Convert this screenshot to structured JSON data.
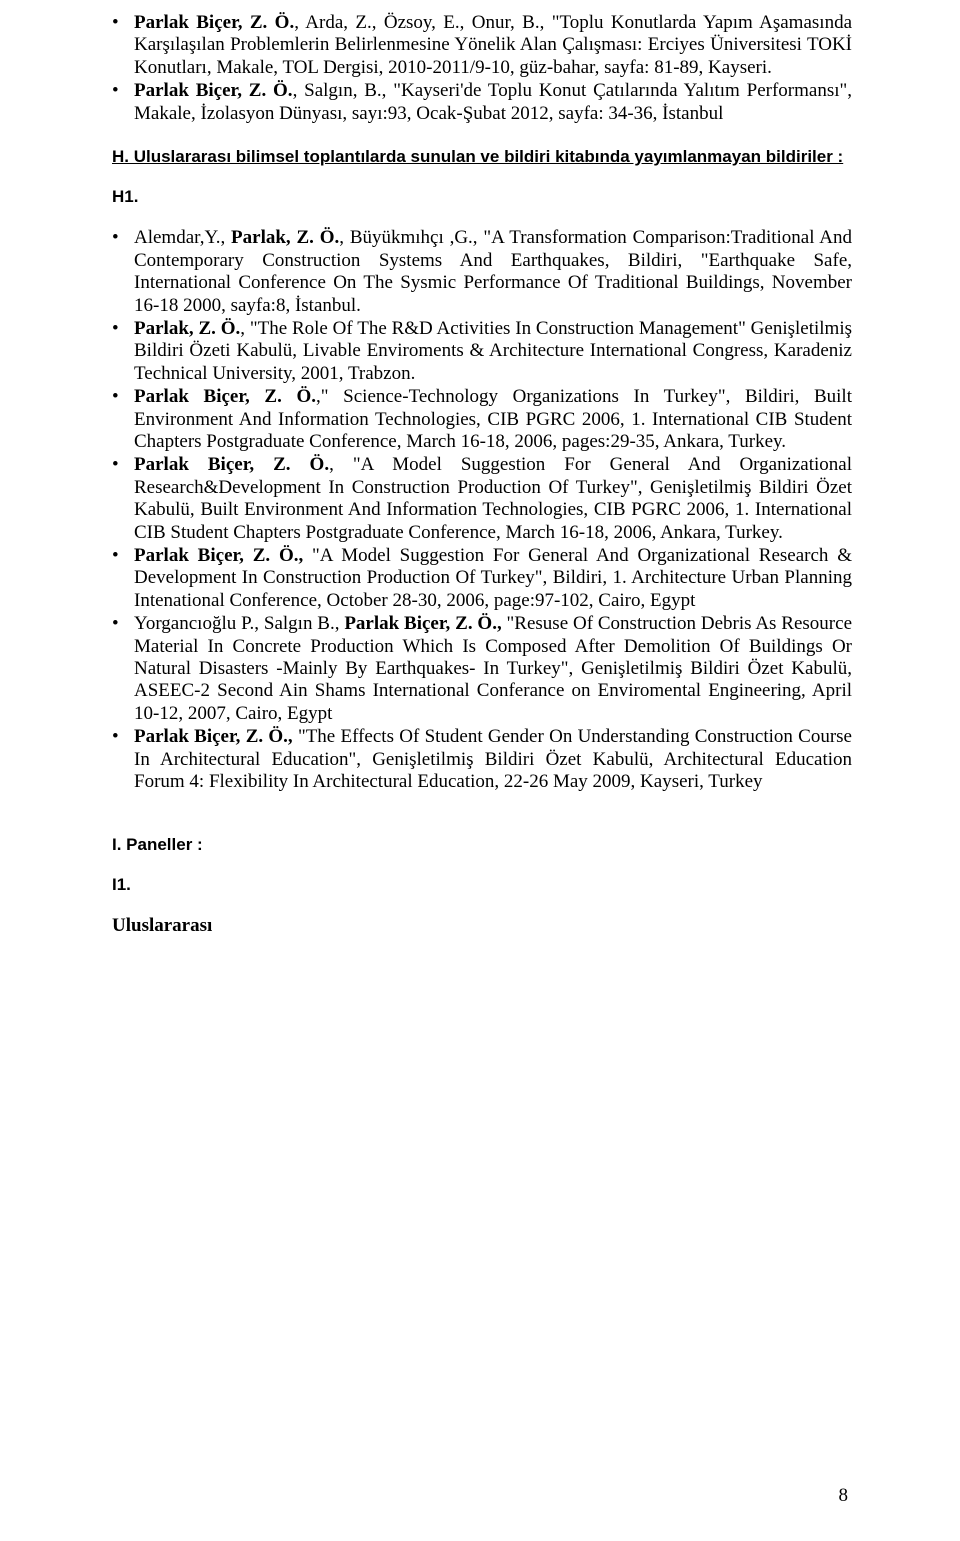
{
  "bullet_char": "•",
  "entries_top": [
    {
      "lead_bold": "Parlak Biçer, Z. Ö.",
      "rest": ", Arda, Z., Özsoy, E., Onur, B., \"Toplu Konutlarda Yapım Aşamasında Karşılaşılan Problemlerin Belirlenmesine Yönelik Alan Çalışması: Erciyes Üniversitesi TOKİ Konutları, Makale, TOL Dergisi, 2010-2011/9-10, güz-bahar, sayfa: 81-89, Kayseri."
    },
    {
      "lead_bold": "Parlak Biçer, Z. Ö.",
      "rest": ", Salgın, B., \"Kayseri'de Toplu Konut Çatılarında Yalıtım Performansı\", Makale, İzolasyon Dünyası, sayı:93, Ocak-Şubat 2012, sayfa: 34-36, İstanbul"
    }
  ],
  "section_h": "H.  Uluslararası  bilimsel  toplantılarda  sunulan  ve  bildiri  kitabında yayımlanmayan bildiriler :",
  "h1_label": "H1.",
  "entries_h1": [
    {
      "pre": "Alemdar,Y.,  ",
      "bold1": "Parlak,  Z.  Ö.",
      "rest": ",  Büyükmıhçı  ,G.,  \"A  Transformation Comparison:Traditional And Contemporary Construction Systems And Earthquakes, Bildiri, \"Earthquake Safe, International Conference On The Sysmic Performance Of Traditional Buildings, November 16-18 2000, sayfa:8, İstanbul."
    },
    {
      "pre": "",
      "bold1": "Parlak, Z. Ö.",
      "rest": ", \"The Role Of The R&D Activities In Construction Management\" Genişletilmiş Bildiri Özeti Kabulü, Livable Enviroments & Architecture International Congress, Karadeniz Technical University, 2001, Trabzon."
    },
    {
      "pre": "",
      "bold1": "Parlak Biçer, Z. Ö.",
      "rest": ",\" Science-Technology Organizations In Turkey\", Bildiri, Built Environment And Information Technologies, CIB PGRC 2006, 1. International CIB Student Chapters Postgraduate Conference, March 16-18, 2006, pages:29-35, Ankara, Turkey."
    },
    {
      "pre": "",
      "bold1": "Parlak Biçer, Z. Ö.",
      "rest": ", \"A Model Suggestion For General And Organizational Research&Development In Construction Production Of Turkey\", Genişletilmiş Bildiri Özet Kabulü, Built Environment And Information Technologies, CIB PGRC 2006, 1. International CIB Student Chapters Postgraduate Conference, March 16-18, 2006, Ankara, Turkey."
    },
    {
      "pre": "",
      "bold1": "Parlak Biçer, Z. Ö.,",
      "rest": " \"A Model Suggestion For General And Organizational Research & Development In Construction Production Of Turkey\", Bildiri, 1. Architecture Urban Planning Intenational Conference, October 28-30, 2006, page:97-102, Cairo, Egypt"
    },
    {
      "pre": "Yorgancıoğlu P., Salgın B., ",
      "bold1": "Parlak Biçer, Z. Ö.,",
      "rest": " \"Resuse Of Construction Debris As Resource Material In Concrete Production Which Is Composed After Demolition Of Buildings Or Natural Disasters -Mainly By Earthquakes- In Turkey\", Genişletilmiş Bildiri Özet Kabulü, ASEEC-2 Second Ain Shams International Conferance on Enviromental Engineering, April 10-12, 2007, Cairo, Egypt"
    },
    {
      "pre": "",
      "bold1": "Parlak Biçer, Z. Ö.,",
      "rest": " \"The Effects Of Student Gender On Understanding Construction Course In Architectural Education\", Genişletilmiş Bildiri Özet Kabulü, Architectural Education Forum 4: Flexibility In Architectural Education, 22-26 May 2009, Kayseri, Turkey"
    }
  ],
  "section_i": "I. Paneller :",
  "i1_label": "I1.",
  "i_text": "Uluslararası",
  "page_number": "8"
}
